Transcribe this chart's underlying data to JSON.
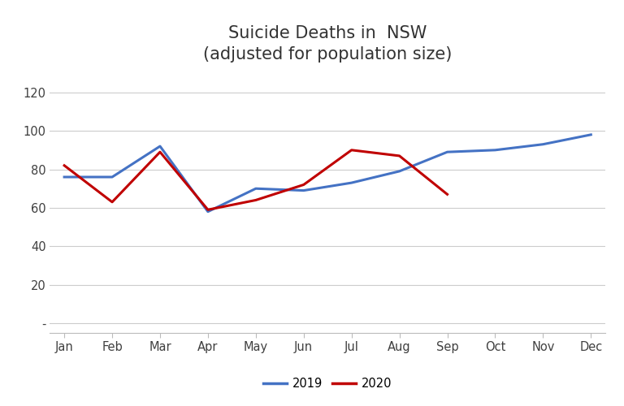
{
  "title_line1": "Suicide Deaths in  NSW",
  "title_line2": "(adjusted for population size)",
  "months": [
    "Jan",
    "Feb",
    "Mar",
    "Apr",
    "May",
    "Jun",
    "Jul",
    "Aug",
    "Sep",
    "Oct",
    "Nov",
    "Dec"
  ],
  "data_2019": [
    76,
    76,
    92,
    58,
    70,
    69,
    73,
    79,
    89,
    90,
    93,
    98
  ],
  "data_2020": [
    82,
    63,
    89,
    59,
    64,
    72,
    90,
    87,
    67,
    null,
    null,
    null
  ],
  "color_2019": "#4472C4",
  "color_2020": "#C00000",
  "ylim_min": -5,
  "ylim_max": 130,
  "yticks": [
    0,
    20,
    40,
    60,
    80,
    100,
    120
  ],
  "ytick_labels": [
    "-",
    "20",
    "40",
    "60",
    "80",
    "100",
    "120"
  ],
  "background_color": "#ffffff",
  "grid_color": "#cccccc",
  "title_fontsize": 15,
  "legend_labels": [
    "2019",
    "2020"
  ],
  "line_width": 2.2,
  "marker_size": 0
}
